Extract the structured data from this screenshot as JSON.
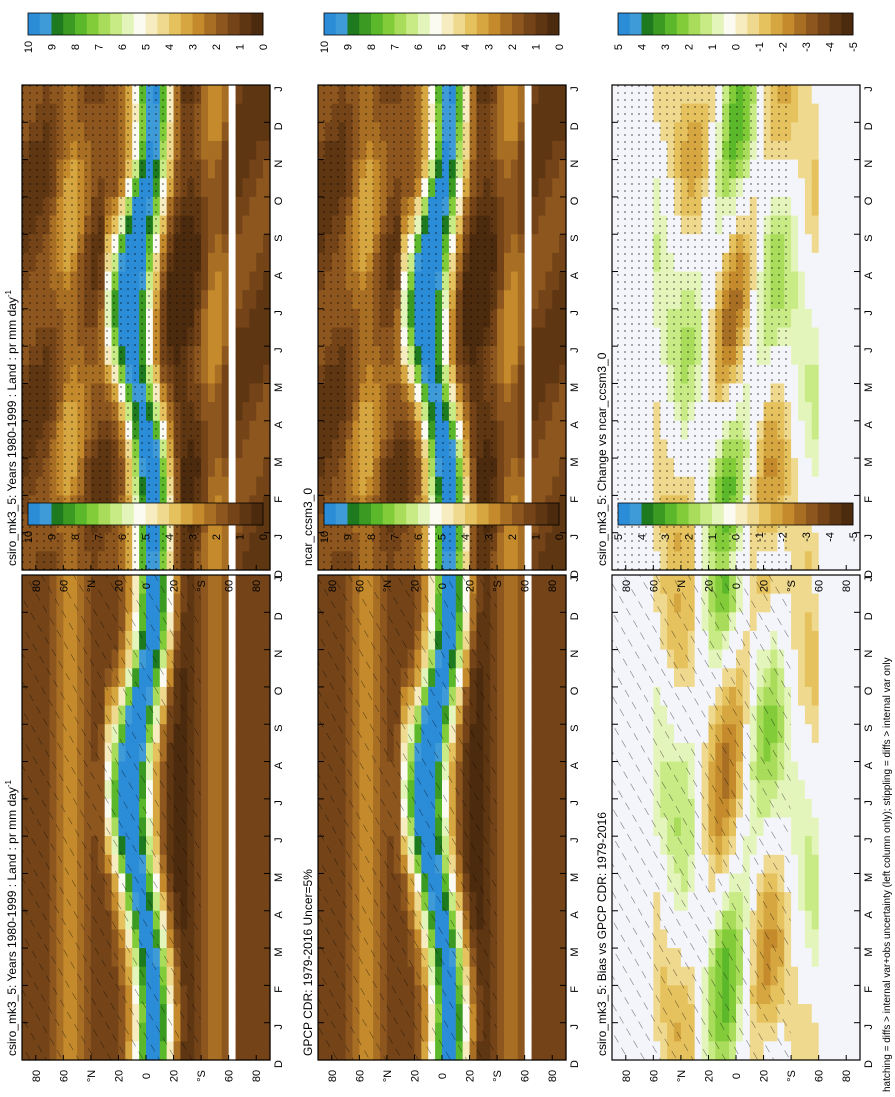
{
  "figure": {
    "footnote": "hatching = diffs > internal var+obs uncertainty (left column only); stippling = diffs > internal var only",
    "month_ticks": [
      "D",
      "J",
      "F",
      "M",
      "A",
      "M",
      "J",
      "J",
      "A",
      "S",
      "O",
      "N",
      "D",
      "J"
    ],
    "lat_ticks": [
      "80",
      "60",
      "°N",
      "20",
      "0",
      "20",
      "°S",
      "60",
      "80"
    ]
  },
  "chart_data": [
    {
      "type": "heatmap",
      "id": "top-left",
      "title": "csiro_mk3_5: Years 1980-1999 : Land : pr mm day",
      "title_sup": "-1",
      "x": "month",
      "y": "latitude",
      "ylim": [
        -90,
        90
      ],
      "colorbar_labels": [
        "10",
        "9",
        "8",
        "7",
        "6",
        "5",
        "4",
        "3",
        "2",
        "1",
        "0"
      ],
      "colorbar_colors": [
        "#2b8cd8",
        "#3f9bd8",
        "#1e7a1e",
        "#3a9a22",
        "#5bb82a",
        "#82cc3a",
        "#a8dc5a",
        "#c8eb86",
        "#e4f5bc",
        "#fbfbf2",
        "#f6ecc0",
        "#efd98e",
        "#e6c25e",
        "#d6a640",
        "#c48a2c",
        "#a86e24",
        "#8c561e",
        "#744418",
        "#5f3612",
        "#4c2a0d"
      ],
      "overlay": "hatching"
    },
    {
      "type": "heatmap",
      "id": "top-right",
      "title": "csiro_mk3_5: Years 1980-1999 : Land : pr mm day",
      "title_sup": "-1",
      "x": "month",
      "y": "latitude",
      "ylim": [
        -90,
        90
      ],
      "colorbar_labels": [
        "10",
        "9",
        "8",
        "7",
        "6",
        "5",
        "4",
        "3",
        "2",
        "1",
        "0"
      ],
      "colorbar_colors": [
        "#2b8cd8",
        "#3f9bd8",
        "#1e7a1e",
        "#3a9a22",
        "#5bb82a",
        "#82cc3a",
        "#a8dc5a",
        "#c8eb86",
        "#e4f5bc",
        "#fbfbf2",
        "#f6ecc0",
        "#efd98e",
        "#e6c25e",
        "#d6a640",
        "#c48a2c",
        "#a86e24",
        "#8c561e",
        "#744418",
        "#5f3612",
        "#4c2a0d"
      ],
      "overlay": "stippling"
    },
    {
      "type": "heatmap",
      "id": "middle-left",
      "title": "GPCP CDR: 1979-2016 Uncer=5%",
      "title_sup": "",
      "x": "month",
      "y": "latitude",
      "ylim": [
        -90,
        90
      ],
      "colorbar_labels": [
        "10",
        "9",
        "8",
        "7",
        "6",
        "5",
        "4",
        "3",
        "2",
        "1",
        "0"
      ],
      "colorbar_colors": [
        "#2b8cd8",
        "#3f9bd8",
        "#1e7a1e",
        "#3a9a22",
        "#5bb82a",
        "#82cc3a",
        "#a8dc5a",
        "#c8eb86",
        "#e4f5bc",
        "#fbfbf2",
        "#f6ecc0",
        "#efd98e",
        "#e6c25e",
        "#d6a640",
        "#c48a2c",
        "#a86e24",
        "#8c561e",
        "#744418",
        "#5f3612",
        "#4c2a0d"
      ],
      "overlay": "hatching"
    },
    {
      "type": "heatmap",
      "id": "middle-right",
      "title": "ncar_ccsm3_0",
      "title_sup": "",
      "x": "month",
      "y": "latitude",
      "ylim": [
        -90,
        90
      ],
      "colorbar_labels": [
        "10",
        "9",
        "8",
        "7",
        "6",
        "5",
        "4",
        "3",
        "2",
        "1",
        "0"
      ],
      "colorbar_colors": [
        "#2b8cd8",
        "#3f9bd8",
        "#1e7a1e",
        "#3a9a22",
        "#5bb82a",
        "#82cc3a",
        "#a8dc5a",
        "#c8eb86",
        "#e4f5bc",
        "#fbfbf2",
        "#f6ecc0",
        "#efd98e",
        "#e6c25e",
        "#d6a640",
        "#c48a2c",
        "#a86e24",
        "#8c561e",
        "#744418",
        "#5f3612",
        "#4c2a0d"
      ],
      "overlay": "stippling"
    },
    {
      "type": "heatmap",
      "id": "bottom-left",
      "title": "csiro_mk3_5: Bias vs GPCP CDR: 1979-2016",
      "title_sup": "",
      "x": "month",
      "y": "latitude",
      "ylim": [
        -90,
        90
      ],
      "colorbar_labels": [
        "5",
        "4",
        "3",
        "2",
        "1",
        "0",
        "-1",
        "-2",
        "-3",
        "-4",
        "-5"
      ],
      "colorbar_colors": [
        "#2b8cd8",
        "#3f9bd8",
        "#1e7a1e",
        "#3a9a22",
        "#5bb82a",
        "#82cc3a",
        "#a8dc5a",
        "#c8eb86",
        "#e4f5bc",
        "#fbfbf2",
        "#f6ecc0",
        "#efd98e",
        "#e6c25e",
        "#d6a640",
        "#c48a2c",
        "#a86e24",
        "#8c561e",
        "#744418",
        "#5f3612",
        "#4c2a0d"
      ],
      "overlay": "hatching"
    },
    {
      "type": "heatmap",
      "id": "bottom-right",
      "title": "csiro_mk3_5: Change vs ncar_ccsm3_0",
      "title_sup": "",
      "x": "month",
      "y": "latitude",
      "ylim": [
        -90,
        90
      ],
      "colorbar_labels": [
        "5",
        "4",
        "3",
        "2",
        "1",
        "0",
        "-1",
        "-2",
        "-3",
        "-4",
        "-5"
      ],
      "colorbar_colors": [
        "#2b8cd8",
        "#3f9bd8",
        "#1e7a1e",
        "#3a9a22",
        "#5bb82a",
        "#82cc3a",
        "#a8dc5a",
        "#c8eb86",
        "#e4f5bc",
        "#fbfbf2",
        "#f6ecc0",
        "#efd98e",
        "#e6c25e",
        "#d6a640",
        "#c48a2c",
        "#a86e24",
        "#8c561e",
        "#744418",
        "#5f3612",
        "#4c2a0d"
      ],
      "overlay": "stippling"
    }
  ]
}
